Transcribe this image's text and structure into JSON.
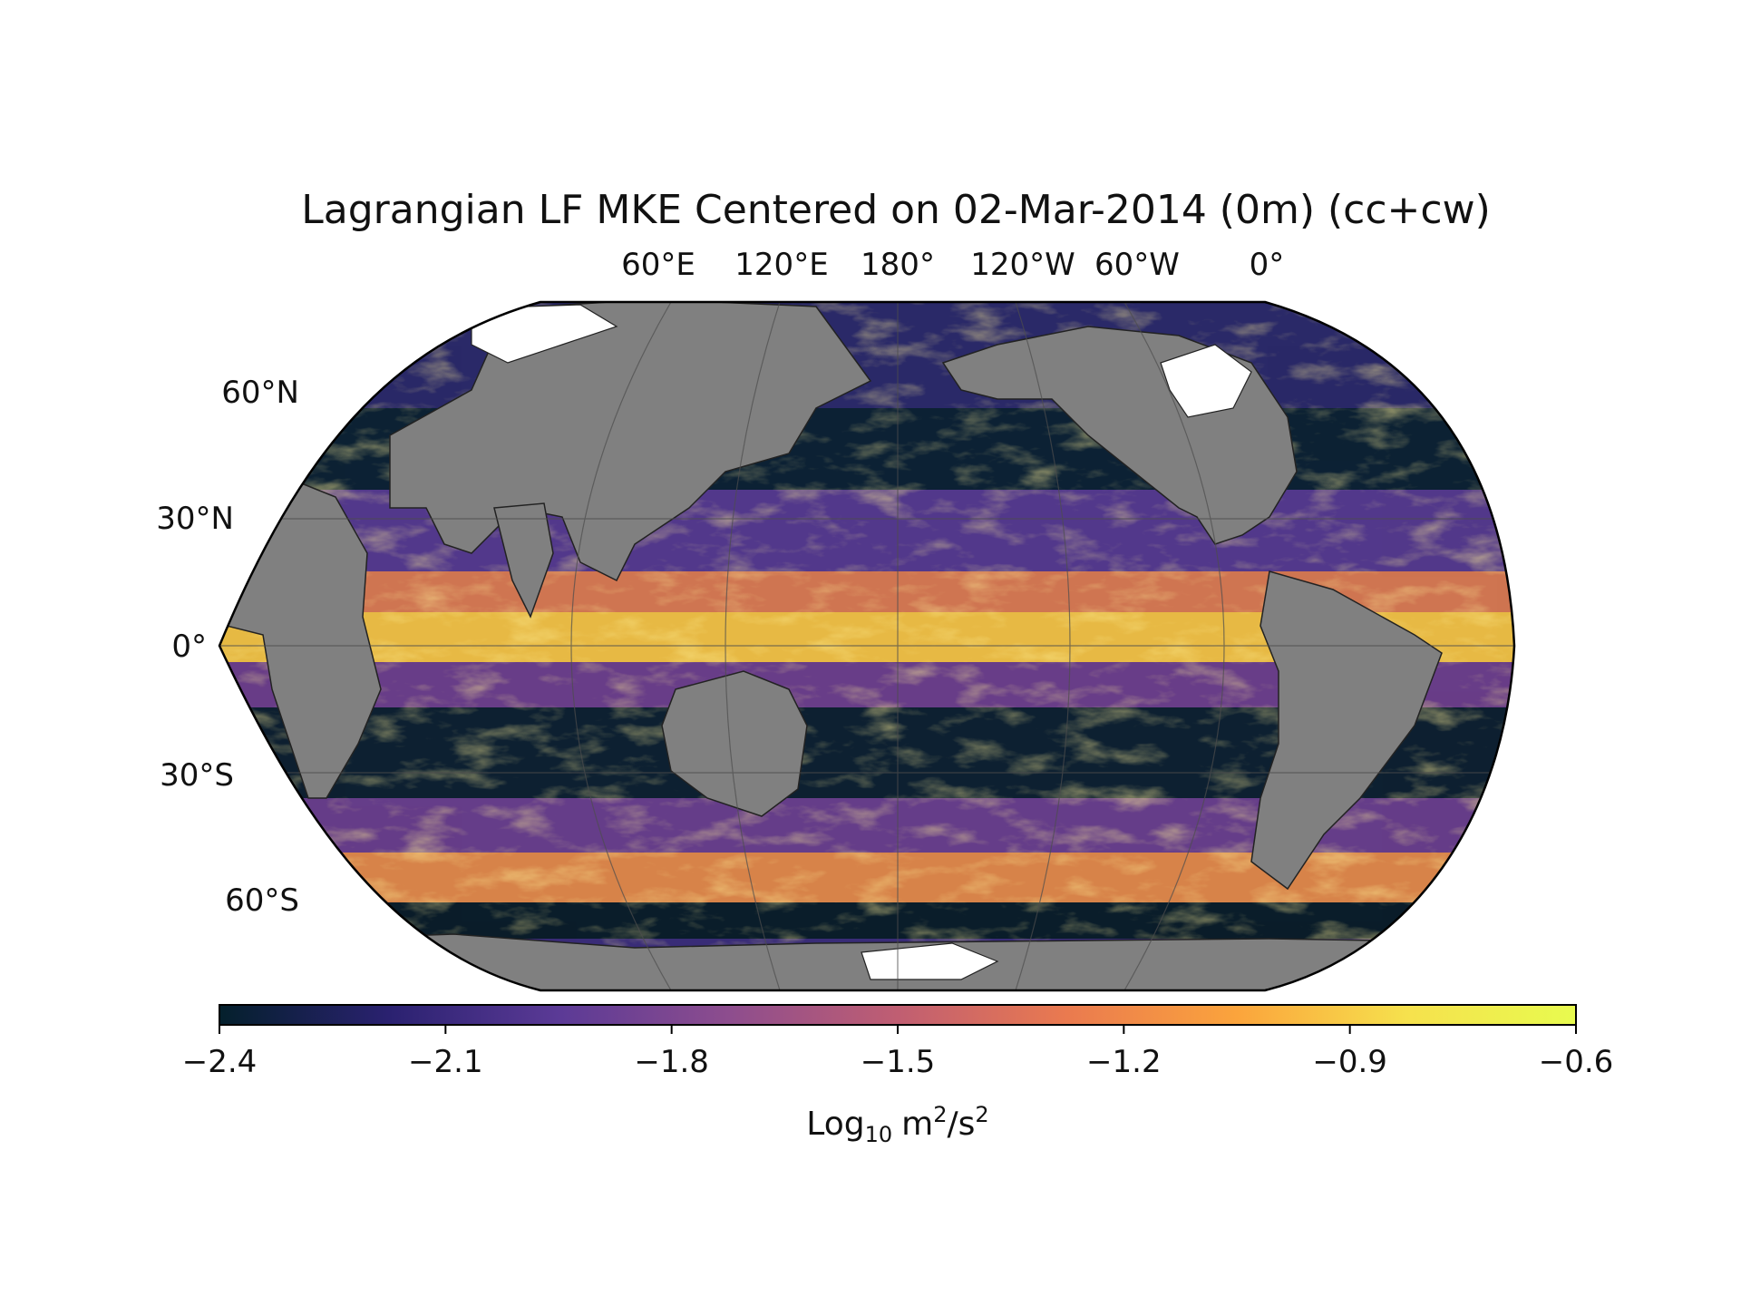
{
  "title": "Lagrangian LF MKE Centered on 02-Mar-2014 (0m) (cc+cw)",
  "map": {
    "projection": "Robinson",
    "central_longitude": "180",
    "lon_ticks": [
      "60°E",
      "120°E",
      "180°",
      "120°W",
      "60°W",
      "0°"
    ],
    "lat_ticks": [
      "60°N",
      "30°N",
      "0°",
      "30°S",
      "60°S"
    ],
    "colors": {
      "land": "#808080",
      "sea_ice": "#ffffff",
      "ocean_low": "#0b1f2e",
      "ocean_high": "#f6f047",
      "gridline": "#555555"
    }
  },
  "colorbar": {
    "colormap": "thermal",
    "vmin": -2.4,
    "vmax": -0.6,
    "ticks": [
      "−2.4",
      "−2.1",
      "−1.8",
      "−1.5",
      "−1.2",
      "−0.9",
      "−0.6"
    ],
    "label_main": "Log",
    "label_sub": "10",
    "label_unit_m": "m",
    "label_sup1": "2",
    "label_slash": "/s",
    "label_sup2": "2",
    "color_stops": [
      "#04202c",
      "#2a2170",
      "#5b3a96",
      "#8d4d8e",
      "#c05e72",
      "#ea7a4f",
      "#fba43c",
      "#f6e14d",
      "#e8fb4f"
    ]
  }
}
